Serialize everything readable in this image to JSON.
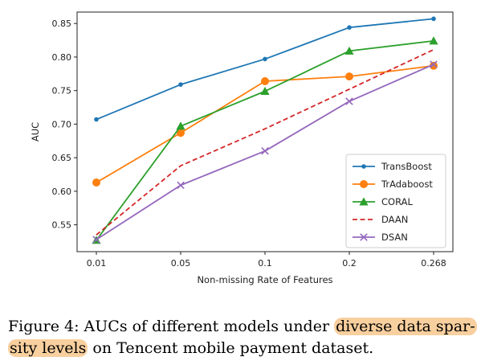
{
  "chart_data": {
    "type": "line",
    "title": "",
    "xlabel": "Non-missing Rate of Features",
    "ylabel": "AUC",
    "categories": [
      "0.01",
      "0.05",
      "0.1",
      "0.2",
      "0.268"
    ],
    "ylim": [
      0.51,
      0.867
    ],
    "yticks": [
      "0.55",
      "0.60",
      "0.65",
      "0.70",
      "0.75",
      "0.80",
      "0.85"
    ],
    "grid": false,
    "legend_position": "bottom-right",
    "series": [
      {
        "name": "TransBoost",
        "color": "#1f77b4",
        "marker": "dot",
        "dash": false,
        "values": [
          0.707,
          0.759,
          0.797,
          0.844,
          0.857
        ]
      },
      {
        "name": "TrAdaboost",
        "color": "#ff7f0e",
        "marker": "circle",
        "dash": false,
        "values": [
          0.613,
          0.687,
          0.764,
          0.771,
          0.787
        ]
      },
      {
        "name": "CORAL",
        "color": "#2ca02c",
        "marker": "triangle",
        "dash": false,
        "values": [
          0.527,
          0.697,
          0.749,
          0.809,
          0.824
        ]
      },
      {
        "name": "DAAN",
        "color": "#d62728",
        "marker": "none",
        "dash": true,
        "values": [
          0.535,
          0.638,
          0.693,
          0.752,
          0.811
        ]
      },
      {
        "name": "DSAN",
        "color": "#9467bd",
        "marker": "x",
        "dash": false,
        "values": [
          0.528,
          0.609,
          0.66,
          0.734,
          0.789
        ]
      }
    ]
  },
  "caption": {
    "prefix": "Figure 4: AUCs of different models under ",
    "highlight_1": "diverse data spar-",
    "highlight_2": "sity levels",
    "suffix": " on Tencent mobile payment dataset."
  }
}
